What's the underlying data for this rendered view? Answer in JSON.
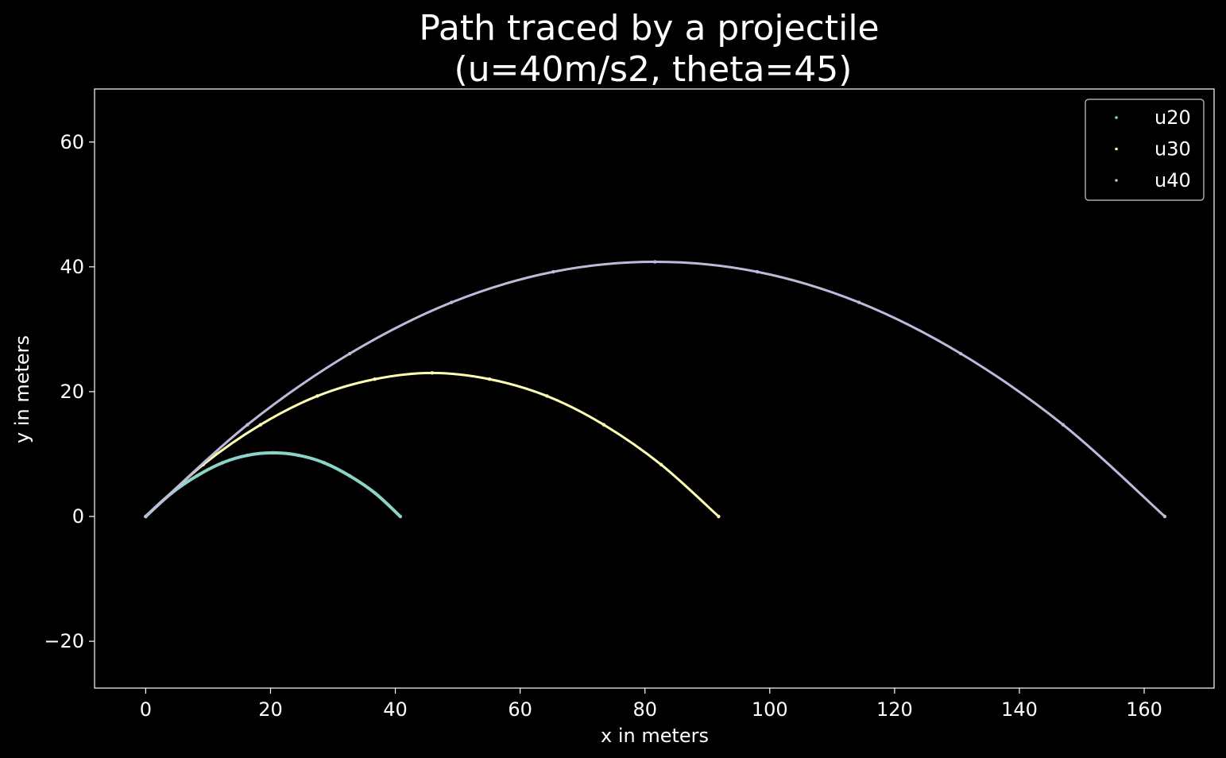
{
  "chart_data": {
    "type": "scatter",
    "title_line1": "Path traced by a projectile",
    "title_line2": "(u=40m/s2, theta=45)",
    "xlabel": "x in meters",
    "ylabel": "y in meters",
    "xlim": [
      -8.2,
      171.2
    ],
    "ylim": [
      -27.5,
      68.5
    ],
    "xticks": [
      0,
      20,
      40,
      60,
      80,
      100,
      120,
      140,
      160
    ],
    "yticks": [
      -20,
      0,
      20,
      40,
      60
    ],
    "grid": false,
    "legend_position": "top-right",
    "background": "#000000",
    "series": [
      {
        "name": "u20",
        "color": "#8dd3c7",
        "x": [
          0,
          4.1,
          8.2,
          12.3,
          16.3,
          20.4,
          24.5,
          28.6,
          32.7,
          36.8,
          40.8
        ],
        "y": [
          0,
          3.7,
          6.5,
          8.6,
          9.8,
          10.2,
          9.8,
          8.6,
          6.5,
          3.7,
          0
        ]
      },
      {
        "name": "u30",
        "color": "#ffffb3",
        "x": [
          0,
          9.2,
          18.4,
          27.5,
          36.7,
          45.9,
          55.1,
          64.3,
          73.4,
          82.6,
          91.8
        ],
        "y": [
          0,
          8.3,
          14.7,
          19.3,
          22.0,
          23.0,
          22.0,
          19.3,
          14.7,
          8.3,
          0
        ]
      },
      {
        "name": "u40",
        "color": "#bebada",
        "x": [
          0,
          16.3,
          32.7,
          49.0,
          65.3,
          81.6,
          98.0,
          114.3,
          130.6,
          147.0,
          163.3
        ],
        "y": [
          0,
          14.7,
          26.1,
          34.3,
          39.2,
          40.8,
          39.2,
          34.3,
          26.1,
          14.7,
          0
        ]
      }
    ]
  }
}
